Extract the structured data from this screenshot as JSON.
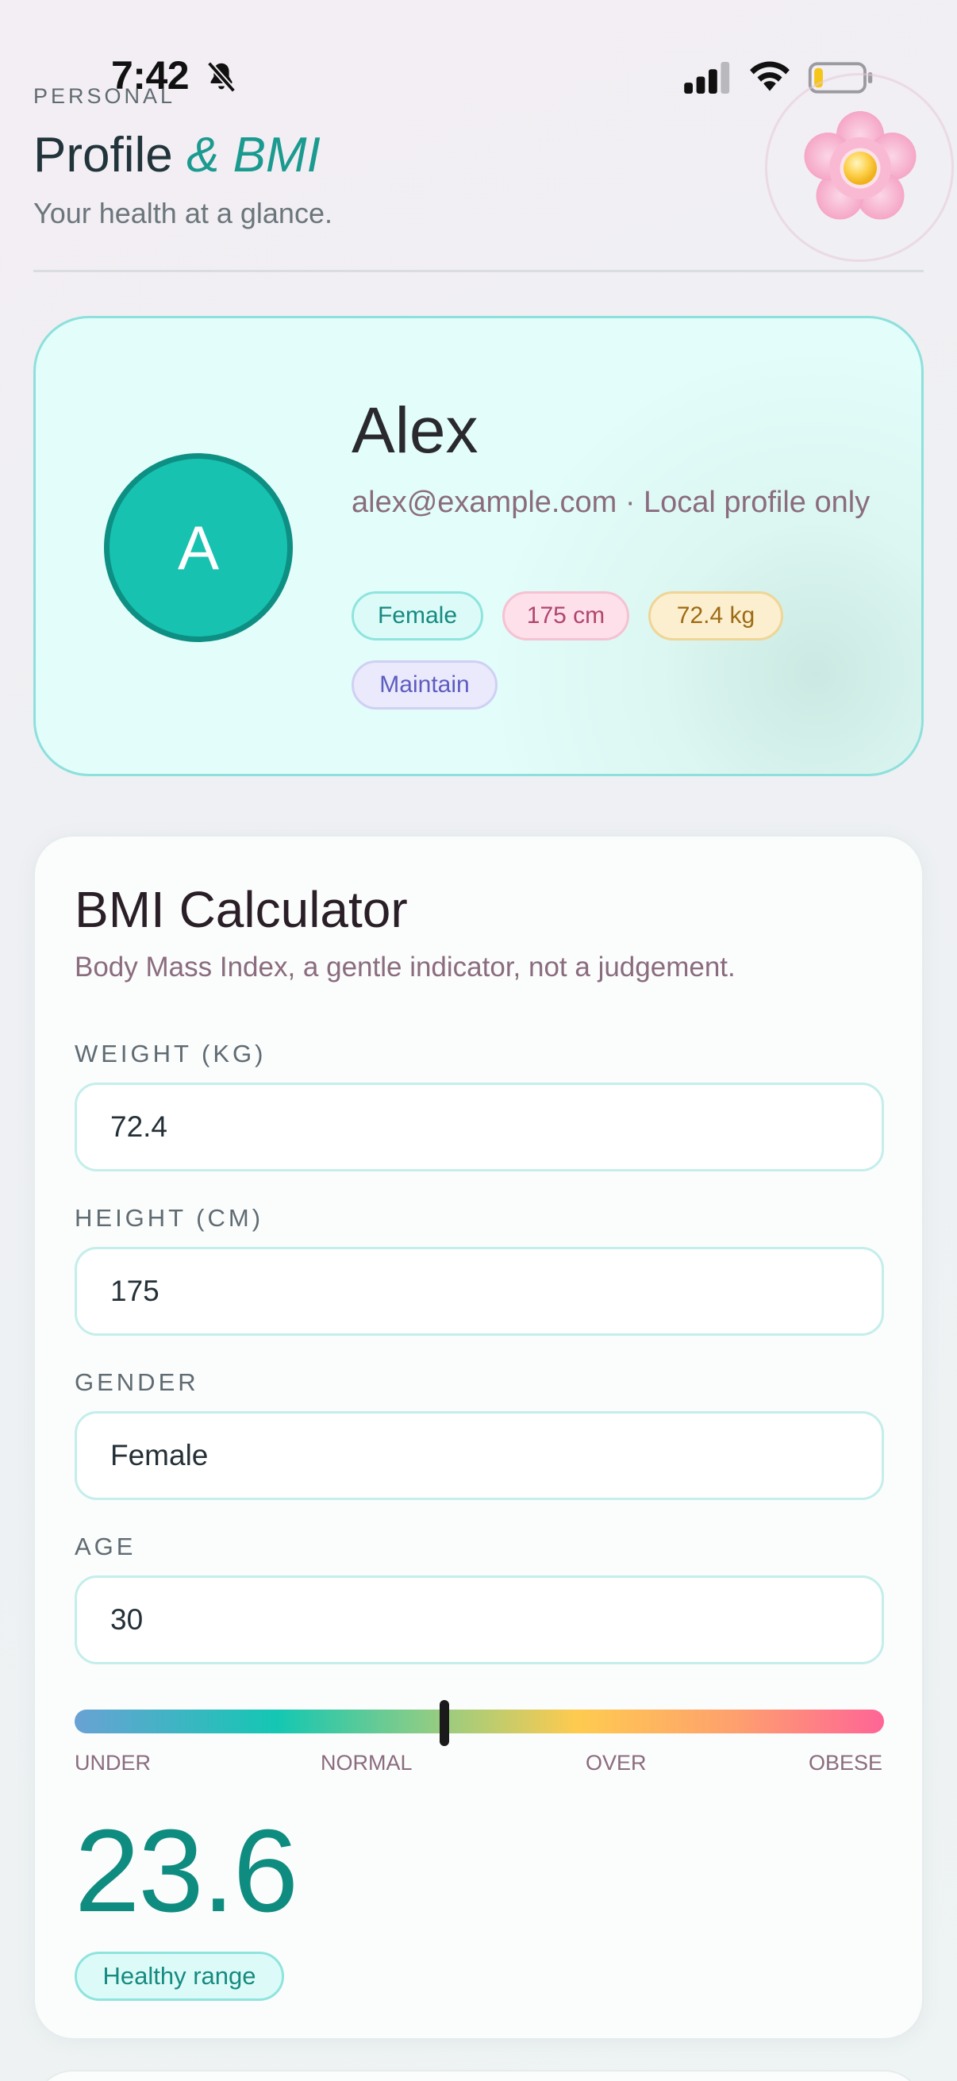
{
  "status_bar": {
    "time": "7:42",
    "icons": [
      "bell-slash-icon",
      "cellular-signal-icon",
      "wifi-icon",
      "battery-icon"
    ]
  },
  "header": {
    "eyebrow": "PERSONAL",
    "title_main": "Profile",
    "title_accent": "& BMI",
    "subtitle": "Your health at a glance.",
    "decoration_icon": "flower-icon"
  },
  "profile": {
    "avatar_initial": "A",
    "name": "Alex",
    "meta": "alex@example.com · Local profile only",
    "chips": {
      "gender": "Female",
      "height": "175 cm",
      "weight": "72.4 kg",
      "goal": "Maintain"
    }
  },
  "bmi": {
    "title": "BMI Calculator",
    "description": "Body Mass Index, a gentle indicator, not a judgement.",
    "fields": {
      "weight": {
        "label": "WEIGHT (KG)",
        "value": "72.4"
      },
      "height": {
        "label": "HEIGHT (CM)",
        "value": "175"
      },
      "gender": {
        "label": "GENDER",
        "value": "Female"
      },
      "age": {
        "label": "AGE",
        "value": "30"
      }
    },
    "scale": {
      "labels": [
        "UNDER",
        "NORMAL",
        "OVER",
        "OBESE"
      ],
      "marker_fraction": 0.457
    },
    "value": "23.6",
    "status": "Healthy range"
  },
  "colors": {
    "accent": "#1b9a8f",
    "avatar_bg": "#17c2b0",
    "bmi_value": "#0f8c80",
    "card_border": "#8de0dc"
  }
}
